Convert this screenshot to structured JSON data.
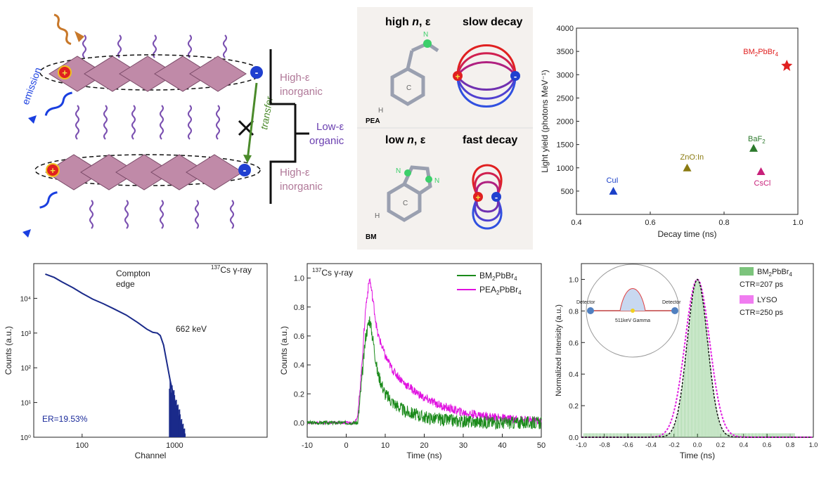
{
  "schematic": {
    "label_high_eps_top": "High-ε",
    "label_inorganic_top": "inorganic",
    "label_low_eps": "Low-ε",
    "label_organic": "organic",
    "label_high_eps_bottom": "High-ε",
    "label_inorganic_bottom": "inorganic",
    "label_emission": "emission",
    "label_transfer": "transfer",
    "plus": "+",
    "minus": "-"
  },
  "molecules": {
    "top_left_title_a": "high ",
    "top_left_title_n": "n",
    "top_left_title_b": ", ε",
    "top_right_title": "slow decay",
    "bottom_left_title_a": "low ",
    "bottom_left_title_n": "n",
    "bottom_left_title_b": ", ε",
    "bottom_right_title": "fast decay",
    "pea_label": "PEA",
    "bm_label": "BM",
    "atom_N": "N",
    "atom_C": "C",
    "atom_H": "H"
  },
  "chart_data": [
    {
      "id": "light-yield",
      "type": "scatter",
      "xlabel": "Decay time (ns)",
      "ylabel": "Light yield (photons MeV⁻¹)",
      "xlim": [
        0.4,
        1.0
      ],
      "ylim": [
        0,
        4000
      ],
      "xticks": [
        "0.4",
        "0.6",
        "0.8",
        "1.0"
      ],
      "yticks": [
        "500",
        "1000",
        "1500",
        "2000",
        "2500",
        "3000",
        "3500",
        "4000"
      ],
      "points": [
        {
          "label": "CuI",
          "x": 0.5,
          "y": 500,
          "color": "#1a3fc8",
          "marker": "triangle"
        },
        {
          "label": "ZnO:In",
          "x": 0.7,
          "y": 1000,
          "color": "#8a7a10",
          "marker": "triangle"
        },
        {
          "label": "BaF",
          "sub": "2",
          "x": 0.88,
          "y": 1420,
          "color": "#2d7a2d",
          "marker": "triangle"
        },
        {
          "label": "CsCl",
          "x": 0.9,
          "y": 920,
          "color": "#c8207a",
          "marker": "triangle"
        },
        {
          "label": "BM",
          "sub": "2",
          "label2": "PbBr",
          "sub2": "4",
          "x": 0.97,
          "y": 3200,
          "color": "#e02020",
          "marker": "star"
        }
      ]
    },
    {
      "id": "energy-spectrum",
      "type": "line",
      "xlabel": "Channel",
      "ylabel": "Counts (a.u.)",
      "xscale": "log",
      "yscale": "log",
      "xlim": [
        30,
        10000
      ],
      "ylim": [
        1,
        100000
      ],
      "xticks": [
        "100",
        "1000"
      ],
      "yticks": [
        "10⁰",
        "10¹",
        "10²",
        "10³",
        "10⁴"
      ],
      "annotations": {
        "compton_a": "Compton",
        "compton_b": "edge",
        "peak": "662 keV",
        "source_sup": "137",
        "source": "Cs γ-ray",
        "er": "ER=19.53%"
      },
      "series": [
        {
          "x": [
            40,
            50,
            60,
            80,
            100,
            130,
            170,
            220,
            300,
            400,
            500,
            580,
            650,
            700,
            760,
            820,
            900,
            1000,
            1100,
            1200,
            1300
          ],
          "y": [
            50000,
            40000,
            30000,
            20000,
            14000,
            9500,
            7000,
            5000,
            3300,
            2000,
            1300,
            1050,
            1000,
            850,
            450,
            150,
            40,
            12,
            4,
            1.8,
            1.1
          ]
        }
      ]
    },
    {
      "id": "decay-curves",
      "type": "line",
      "xlabel": "Time (ns)",
      "ylabel": "Counts (a.u.)",
      "xlim": [
        -10,
        50
      ],
      "ylim": [
        -0.1,
        1.1
      ],
      "xticks": [
        "-10",
        "0",
        "10",
        "20",
        "30",
        "40",
        "50"
      ],
      "yticks": [
        "0.0",
        "0.2",
        "0.4",
        "0.6",
        "0.8",
        "1.0"
      ],
      "annotation_sup": "137",
      "annotation": "Cs γ-ray",
      "series": [
        {
          "name": "BM",
          "sub": "2",
          "name2": "PbBr",
          "sub2": "4",
          "color": "#1a8a1a",
          "x": [
            -10,
            3,
            4,
            5,
            6,
            7,
            8,
            10,
            12,
            15,
            20,
            25,
            30,
            40,
            50
          ],
          "y": [
            0.0,
            0.0,
            0.3,
            0.6,
            0.72,
            0.55,
            0.35,
            0.2,
            0.14,
            0.08,
            0.04,
            0.02,
            0.01,
            0.0,
            0.0
          ]
        },
        {
          "name": "PEA",
          "sub": "2",
          "name2": "PbBr",
          "sub2": "4",
          "color": "#e010e0",
          "x": [
            -10,
            2,
            3,
            4,
            5,
            6,
            7,
            8,
            10,
            12,
            15,
            20,
            25,
            30,
            35,
            40,
            50
          ],
          "y": [
            0.0,
            0.0,
            0.05,
            0.4,
            0.8,
            1.0,
            0.82,
            0.62,
            0.46,
            0.36,
            0.27,
            0.17,
            0.11,
            0.07,
            0.05,
            0.03,
            0.01
          ]
        }
      ]
    },
    {
      "id": "ctr",
      "type": "bar",
      "xlabel": "Time (ns)",
      "ylabel": "Normalized Intenisity (a.u.)",
      "xlim": [
        -1.0,
        1.0
      ],
      "ylim": [
        0,
        1.1
      ],
      "xticks": [
        "-1.0",
        "-0.8",
        "-0.6",
        "-0.4",
        "-0.2",
        "0.0",
        "0.2",
        "0.4",
        "0.6",
        "0.8",
        "1.0"
      ],
      "yticks": [
        "0.0",
        "0.2",
        "0.4",
        "0.6",
        "0.8",
        "1.0"
      ],
      "series": [
        {
          "name": "BM",
          "sub": "2",
          "name2": "PbBr",
          "sub2": "4",
          "ctr": "CTR=207 ps",
          "color": "#7cc47c",
          "sigma": 0.088
        },
        {
          "name": "LYSO",
          "ctr": "CTR=250 ps",
          "color": "#f07cf0",
          "sigma": 0.106
        }
      ],
      "inset": {
        "left": "Detector",
        "right": "Detector",
        "gamma": "511keV Gamma"
      }
    }
  ]
}
